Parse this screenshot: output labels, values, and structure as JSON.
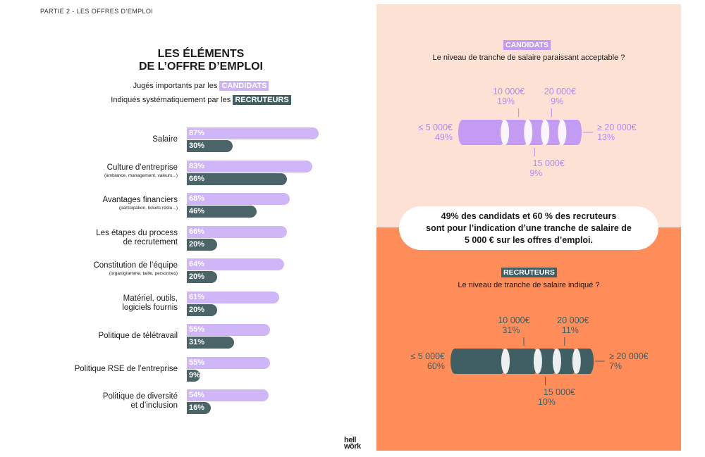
{
  "header": {
    "section": "PARTIE 2 - LES OFFRES D’EMPLOI"
  },
  "title": {
    "line1": "LES ÉLÉMENTS",
    "line2": "DE L’OFFRE D’EMPLOI"
  },
  "legend": {
    "candidates_prefix": "Jugés importants par les",
    "candidates_tag": "CANDIDATS",
    "recruiters_prefix": "Indiqués systématiquement par les",
    "recruiters_tag": "RECRUTEURS"
  },
  "chart_data": [
    {
      "type": "bar",
      "title": "LES ÉLÉMENTS DE L’OFFRE D’EMPLOI",
      "categories": [
        {
          "label": "Salaire",
          "sub": ""
        },
        {
          "label": "Culture d’entreprise",
          "sub": "(ambiance, management, valeurs...)"
        },
        {
          "label": "Avantages financiers",
          "sub": "(participation, tickets resto...)"
        },
        {
          "label": "Les étapes du process",
          "label2": "de recrutement",
          "sub": ""
        },
        {
          "label": "Constitution de l’équipe",
          "sub": "(organigramme, taille, personnes)"
        },
        {
          "label": "Matériel, outils,",
          "label2": "logiciels fournis",
          "sub": ""
        },
        {
          "label": "Politique de télétravail",
          "sub": ""
        },
        {
          "label": "Politique RSE de l’entreprise",
          "sub": ""
        },
        {
          "label": "Politique de diversité",
          "label2": "et d’inclusion",
          "sub": ""
        }
      ],
      "series": [
        {
          "name": "CANDIDATS",
          "values": [
            87,
            83,
            68,
            66,
            64,
            61,
            55,
            55,
            54
          ],
          "labels": [
            "87%",
            "83%",
            "68%",
            "66%",
            "64%",
            "61%",
            "55%",
            "55%",
            "54%"
          ],
          "color": "#cfb6f7"
        },
        {
          "name": "RECRUTEURS",
          "values": [
            30,
            66,
            46,
            20,
            20,
            20,
            31,
            9,
            16
          ],
          "labels": [
            "30%",
            "66%",
            "46%",
            "20%",
            "20%",
            "20%",
            "31%",
            "9%",
            "16%"
          ],
          "color": "#4a6468"
        }
      ],
      "unit": "%",
      "ylim": [
        0,
        100
      ]
    },
    {
      "type": "bar",
      "name": "CANDIDATS",
      "question": "Le niveau de tranche de salaire paraissant acceptable ?",
      "segments": [
        {
          "label": "≤ 5 000€",
          "value": 49,
          "pct": "49%"
        },
        {
          "label": "10 000€",
          "value": 19,
          "pct": "19%"
        },
        {
          "label": "15 000€",
          "value": 9,
          "pct": "9%"
        },
        {
          "label": "20 000€",
          "value": 9,
          "pct": "9%"
        },
        {
          "label": "≥ 20 000€",
          "value": 13,
          "pct": "13%"
        }
      ],
      "color": "#c39bf2"
    },
    {
      "type": "bar",
      "name": "RECRUTEURS",
      "question": "Le niveau de tranche de salaire indiqué ?",
      "segments": [
        {
          "label": "≤ 5 000€",
          "value": 60,
          "pct": "60%"
        },
        {
          "label": "10 000€",
          "value": 31,
          "pct": "31%"
        },
        {
          "label": "15 000€",
          "value": 10,
          "pct": "10%"
        },
        {
          "label": "20 000€",
          "value": 11,
          "pct": "11%"
        },
        {
          "label": "≥ 20 000€",
          "value": 7,
          "pct": "7%"
        }
      ],
      "color": "#3f5f63"
    }
  ],
  "callout": {
    "line1": "49% des candidats et 60 % des recruteurs",
    "line2": "sont pour l’indication d’une tranche de salaire de",
    "line3": "5 000 € sur les offres d’emploi."
  },
  "colors": {
    "candidates": "#cfb6f7",
    "recruiters": "#4a6468",
    "top_bg": "#fde1d4",
    "bottom_bg": "#ff8d59"
  },
  "logo": {
    "line1": "hell",
    "line2": "wörk"
  }
}
